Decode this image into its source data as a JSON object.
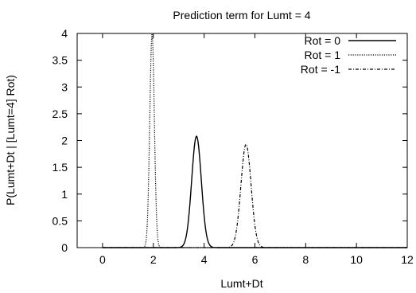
{
  "chart_data": {
    "type": "line",
    "title": "Prediction term for Lumt = 4",
    "xlabel": "Lumt+Dt",
    "ylabel": "P(Lumt+Dt | [Lumt=4] Rot)",
    "xlim": [
      -1,
      12
    ],
    "ylim": [
      0,
      4
    ],
    "xticks": [
      0,
      2,
      4,
      6,
      8,
      10,
      12
    ],
    "yticks": [
      0,
      0.5,
      1,
      1.5,
      2,
      2.5,
      3,
      3.5,
      4
    ],
    "legend_position": "top-right",
    "series": [
      {
        "name": "Rot = 0",
        "style": "solid",
        "color": "#000000",
        "peak_x": 3.7,
        "peak_y": 2.08,
        "sigma": 0.19,
        "x": [
          0,
          3.0,
          3.2,
          3.4,
          3.5,
          3.6,
          3.7,
          3.8,
          3.9,
          4.0,
          4.2,
          4.4,
          12
        ],
        "y": [
          0,
          0.05,
          0.37,
          1.2,
          1.65,
          1.98,
          2.08,
          1.98,
          1.65,
          1.2,
          0.37,
          0.05,
          0
        ]
      },
      {
        "name": "Rot = 1",
        "style": "dotted",
        "color": "#000000",
        "peak_x": 1.95,
        "peak_y": 4.0,
        "sigma": 0.09,
        "x": [
          0,
          1.6,
          1.7,
          1.8,
          1.9,
          1.95,
          2.0,
          2.1,
          2.2,
          2.3,
          12
        ],
        "y": [
          0,
          0.02,
          0.85,
          2.5,
          3.7,
          4.0,
          3.7,
          2.5,
          0.85,
          0.02,
          0
        ]
      },
      {
        "name": "Rot = -1",
        "style": "dash-dot",
        "color": "#000000",
        "peak_x": 5.65,
        "peak_y": 1.93,
        "sigma": 0.2,
        "x": [
          0,
          5.0,
          5.2,
          5.4,
          5.6,
          5.65,
          5.8,
          6.0,
          6.2,
          6.4,
          12
        ],
        "y": [
          0,
          0.1,
          0.5,
          1.3,
          1.9,
          1.93,
          1.7,
          1.05,
          0.4,
          0.05,
          0
        ]
      }
    ]
  }
}
